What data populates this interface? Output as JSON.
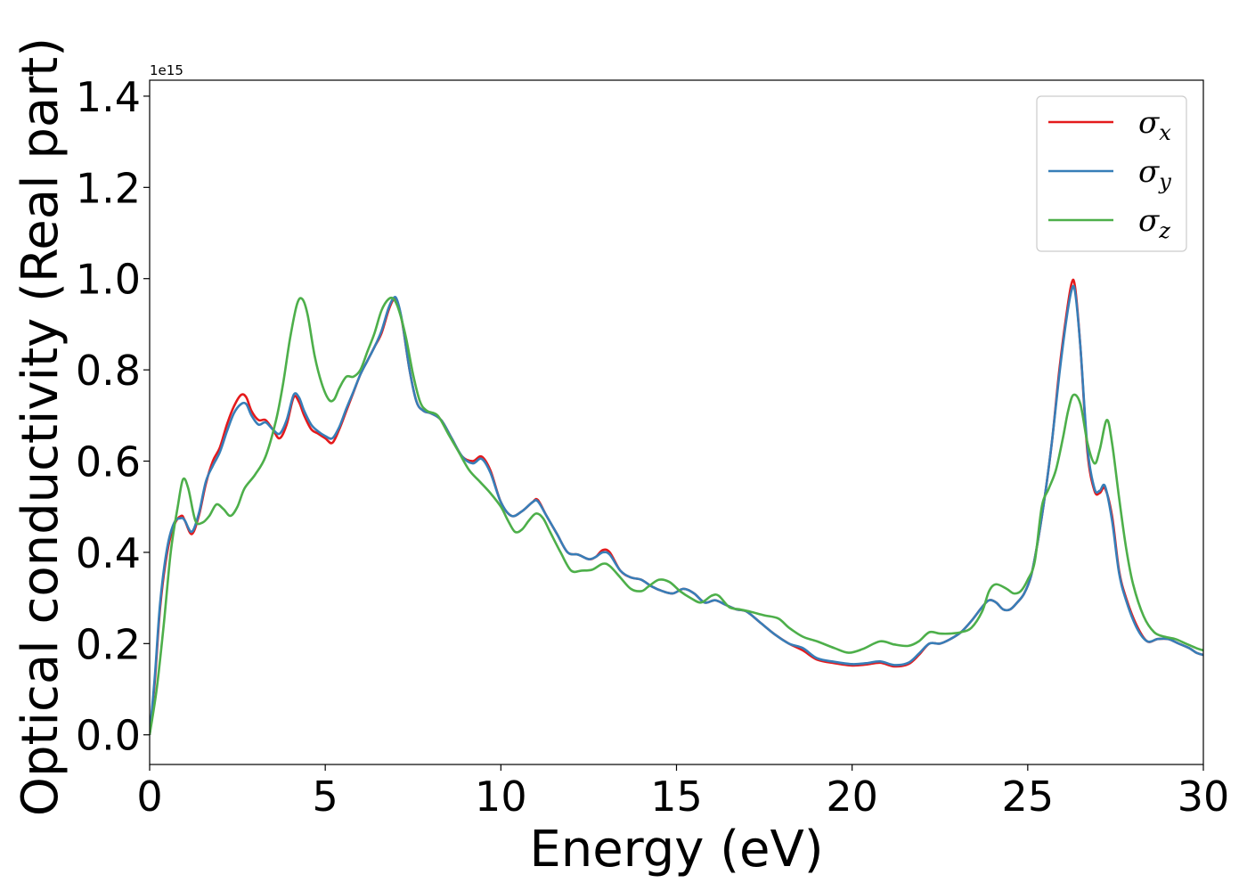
{
  "chart_data": {
    "type": "line",
    "xlabel": "Energy (eV)",
    "ylabel": "Optical conductivity (Real part)",
    "y_offset_label": "1e15",
    "xlim": [
      0,
      30
    ],
    "ylim": [
      -0.065,
      1.435
    ],
    "x_ticks": [
      0,
      5,
      10,
      15,
      20,
      25,
      30
    ],
    "x_tick_labels": [
      "0",
      "5",
      "10",
      "15",
      "20",
      "25",
      "30"
    ],
    "y_ticks": [
      0.0,
      0.2,
      0.4,
      0.6,
      0.8,
      1.0,
      1.2,
      1.4
    ],
    "y_tick_labels": [
      "0.0",
      "0.2",
      "0.4",
      "0.6",
      "0.8",
      "1.0",
      "1.2",
      "1.4"
    ],
    "grid": false,
    "legend_position": "top-right",
    "series": [
      {
        "name": "σx",
        "name_base": "σ",
        "name_sub": "x",
        "color": "#e41a1c",
        "x": [
          0,
          0.15,
          0.3,
          0.5,
          0.7,
          0.9,
          1.0,
          1.2,
          1.4,
          1.6,
          1.8,
          2.0,
          2.2,
          2.4,
          2.6,
          2.75,
          2.9,
          3.1,
          3.3,
          3.5,
          3.7,
          3.9,
          4.1,
          4.25,
          4.4,
          4.6,
          4.8,
          5.0,
          5.2,
          5.4,
          5.6,
          5.8,
          6.0,
          6.2,
          6.4,
          6.6,
          6.8,
          6.95,
          7.05,
          7.2,
          7.4,
          7.6,
          7.8,
          8.0,
          8.3,
          8.6,
          8.9,
          9.2,
          9.45,
          9.7,
          10.0,
          10.3,
          10.6,
          10.9,
          11.05,
          11.3,
          11.6,
          11.9,
          12.2,
          12.5,
          12.7,
          12.9,
          13.1,
          13.4,
          13.7,
          14.0,
          14.3,
          14.6,
          14.9,
          15.2,
          15.5,
          15.8,
          16.1,
          16.4,
          16.7,
          17.0,
          17.4,
          17.8,
          18.2,
          18.6,
          19.0,
          19.5,
          20.0,
          20.4,
          20.8,
          21.2,
          21.6,
          21.9,
          22.2,
          22.5,
          22.8,
          23.1,
          23.4,
          23.7,
          23.9,
          24.1,
          24.3,
          24.5,
          24.7,
          24.9,
          25.1,
          25.3,
          25.5,
          25.7,
          25.9,
          26.1,
          26.25,
          26.35,
          26.5,
          26.7,
          26.9,
          27.05,
          27.2,
          27.4,
          27.6,
          27.8,
          28.1,
          28.4,
          28.7,
          29.0,
          29.3,
          29.6,
          29.8,
          30.0
        ],
        "y": [
          0.0,
          0.12,
          0.28,
          0.4,
          0.46,
          0.48,
          0.47,
          0.44,
          0.48,
          0.55,
          0.6,
          0.63,
          0.68,
          0.72,
          0.745,
          0.74,
          0.71,
          0.69,
          0.69,
          0.67,
          0.65,
          0.68,
          0.74,
          0.73,
          0.7,
          0.67,
          0.66,
          0.65,
          0.64,
          0.67,
          0.71,
          0.75,
          0.79,
          0.82,
          0.85,
          0.88,
          0.93,
          0.955,
          0.95,
          0.9,
          0.8,
          0.73,
          0.71,
          0.705,
          0.69,
          0.65,
          0.61,
          0.6,
          0.61,
          0.58,
          0.51,
          0.48,
          0.49,
          0.51,
          0.515,
          0.48,
          0.44,
          0.4,
          0.395,
          0.385,
          0.39,
          0.405,
          0.4,
          0.36,
          0.345,
          0.34,
          0.325,
          0.315,
          0.31,
          0.32,
          0.31,
          0.29,
          0.295,
          0.285,
          0.275,
          0.27,
          0.245,
          0.22,
          0.2,
          0.185,
          0.165,
          0.157,
          0.152,
          0.154,
          0.158,
          0.15,
          0.155,
          0.175,
          0.2,
          0.2,
          0.21,
          0.225,
          0.25,
          0.28,
          0.295,
          0.29,
          0.275,
          0.275,
          0.29,
          0.31,
          0.35,
          0.43,
          0.53,
          0.65,
          0.8,
          0.92,
          0.99,
          0.98,
          0.85,
          0.62,
          0.535,
          0.53,
          0.54,
          0.48,
          0.36,
          0.3,
          0.24,
          0.205,
          0.21,
          0.21,
          0.2,
          0.19,
          0.18,
          0.175
        ]
      },
      {
        "name": "σy",
        "name_base": "σ",
        "name_sub": "y",
        "color": "#377eb8",
        "x": [
          0,
          0.15,
          0.3,
          0.5,
          0.7,
          0.9,
          1.0,
          1.2,
          1.4,
          1.6,
          1.8,
          2.0,
          2.2,
          2.4,
          2.6,
          2.75,
          2.9,
          3.1,
          3.3,
          3.5,
          3.7,
          3.9,
          4.1,
          4.25,
          4.4,
          4.6,
          4.8,
          5.0,
          5.2,
          5.4,
          5.6,
          5.8,
          6.0,
          6.2,
          6.4,
          6.6,
          6.8,
          6.95,
          7.05,
          7.2,
          7.4,
          7.6,
          7.8,
          8.0,
          8.3,
          8.6,
          8.9,
          9.2,
          9.45,
          9.7,
          10.0,
          10.3,
          10.6,
          10.9,
          11.05,
          11.3,
          11.6,
          11.9,
          12.2,
          12.5,
          12.7,
          12.9,
          13.1,
          13.4,
          13.7,
          14.0,
          14.3,
          14.6,
          14.9,
          15.2,
          15.5,
          15.8,
          16.1,
          16.4,
          16.7,
          17.0,
          17.4,
          17.8,
          18.2,
          18.6,
          19.0,
          19.5,
          20.0,
          20.4,
          20.8,
          21.2,
          21.6,
          21.9,
          22.2,
          22.5,
          22.8,
          23.1,
          23.4,
          23.7,
          23.9,
          24.1,
          24.3,
          24.5,
          24.7,
          24.9,
          25.1,
          25.3,
          25.5,
          25.7,
          25.9,
          26.1,
          26.25,
          26.35,
          26.5,
          26.7,
          26.9,
          27.05,
          27.2,
          27.4,
          27.6,
          27.8,
          28.1,
          28.4,
          28.7,
          29.0,
          29.3,
          29.6,
          29.8,
          30.0
        ],
        "y": [
          0.0,
          0.13,
          0.29,
          0.41,
          0.465,
          0.475,
          0.47,
          0.445,
          0.485,
          0.555,
          0.59,
          0.62,
          0.665,
          0.705,
          0.725,
          0.725,
          0.7,
          0.68,
          0.685,
          0.67,
          0.66,
          0.69,
          0.745,
          0.74,
          0.71,
          0.68,
          0.665,
          0.655,
          0.65,
          0.675,
          0.715,
          0.752,
          0.79,
          0.82,
          0.85,
          0.885,
          0.935,
          0.958,
          0.952,
          0.902,
          0.8,
          0.73,
          0.71,
          0.705,
          0.69,
          0.65,
          0.61,
          0.595,
          0.605,
          0.575,
          0.51,
          0.48,
          0.49,
          0.51,
          0.512,
          0.48,
          0.44,
          0.4,
          0.395,
          0.385,
          0.39,
          0.4,
          0.395,
          0.36,
          0.345,
          0.34,
          0.325,
          0.315,
          0.31,
          0.32,
          0.31,
          0.29,
          0.295,
          0.285,
          0.275,
          0.27,
          0.245,
          0.22,
          0.2,
          0.19,
          0.168,
          0.16,
          0.155,
          0.157,
          0.161,
          0.153,
          0.158,
          0.178,
          0.2,
          0.2,
          0.21,
          0.225,
          0.25,
          0.28,
          0.295,
          0.29,
          0.275,
          0.275,
          0.29,
          0.31,
          0.35,
          0.43,
          0.53,
          0.65,
          0.79,
          0.91,
          0.975,
          0.97,
          0.85,
          0.63,
          0.54,
          0.535,
          0.545,
          0.47,
          0.355,
          0.295,
          0.235,
          0.205,
          0.21,
          0.21,
          0.2,
          0.19,
          0.18,
          0.175
        ]
      },
      {
        "name": "σz",
        "name_base": "σ",
        "name_sub": "z",
        "color": "#4daf4a",
        "x": [
          0,
          0.2,
          0.4,
          0.6,
          0.8,
          0.95,
          1.1,
          1.3,
          1.5,
          1.7,
          1.9,
          2.1,
          2.3,
          2.5,
          2.7,
          3.0,
          3.3,
          3.6,
          3.8,
          4.0,
          4.2,
          4.35,
          4.5,
          4.7,
          4.9,
          5.1,
          5.25,
          5.4,
          5.6,
          5.8,
          6.0,
          6.2,
          6.4,
          6.6,
          6.8,
          6.95,
          7.1,
          7.3,
          7.5,
          7.7,
          7.9,
          8.2,
          8.5,
          8.8,
          9.1,
          9.4,
          9.7,
          10.0,
          10.2,
          10.4,
          10.6,
          10.8,
          11.0,
          11.2,
          11.4,
          11.7,
          12.0,
          12.3,
          12.6,
          12.9,
          13.1,
          13.4,
          13.7,
          14.0,
          14.2,
          14.5,
          14.8,
          15.1,
          15.4,
          15.7,
          16.0,
          16.2,
          16.5,
          16.8,
          17.1,
          17.5,
          17.9,
          18.2,
          18.6,
          19.0,
          19.5,
          19.9,
          20.3,
          20.8,
          21.2,
          21.6,
          21.9,
          22.2,
          22.5,
          22.8,
          23.1,
          23.4,
          23.7,
          23.9,
          24.1,
          24.4,
          24.6,
          24.8,
          25.0,
          25.2,
          25.4,
          25.6,
          25.8,
          26.0,
          26.15,
          26.3,
          26.5,
          26.7,
          26.9,
          27.05,
          27.25,
          27.4,
          27.6,
          27.8,
          28.0,
          28.3,
          28.6,
          28.9,
          29.2,
          29.5,
          29.8,
          30.0
        ],
        "y": [
          0.0,
          0.1,
          0.24,
          0.4,
          0.5,
          0.56,
          0.54,
          0.47,
          0.465,
          0.48,
          0.505,
          0.495,
          0.48,
          0.5,
          0.54,
          0.57,
          0.61,
          0.69,
          0.77,
          0.87,
          0.945,
          0.955,
          0.92,
          0.83,
          0.77,
          0.735,
          0.735,
          0.76,
          0.785,
          0.785,
          0.8,
          0.84,
          0.88,
          0.93,
          0.955,
          0.955,
          0.93,
          0.87,
          0.79,
          0.73,
          0.71,
          0.7,
          0.66,
          0.62,
          0.58,
          0.555,
          0.53,
          0.5,
          0.47,
          0.445,
          0.45,
          0.47,
          0.485,
          0.475,
          0.445,
          0.4,
          0.36,
          0.36,
          0.362,
          0.375,
          0.37,
          0.345,
          0.32,
          0.315,
          0.325,
          0.34,
          0.335,
          0.315,
          0.3,
          0.29,
          0.305,
          0.305,
          0.28,
          0.275,
          0.27,
          0.262,
          0.255,
          0.235,
          0.215,
          0.205,
          0.19,
          0.18,
          0.188,
          0.205,
          0.198,
          0.195,
          0.205,
          0.225,
          0.222,
          0.222,
          0.225,
          0.235,
          0.27,
          0.315,
          0.33,
          0.32,
          0.31,
          0.315,
          0.34,
          0.38,
          0.5,
          0.54,
          0.58,
          0.65,
          0.71,
          0.745,
          0.725,
          0.64,
          0.595,
          0.625,
          0.69,
          0.64,
          0.52,
          0.41,
          0.33,
          0.26,
          0.225,
          0.215,
          0.21,
          0.2,
          0.19,
          0.185
        ]
      }
    ]
  }
}
